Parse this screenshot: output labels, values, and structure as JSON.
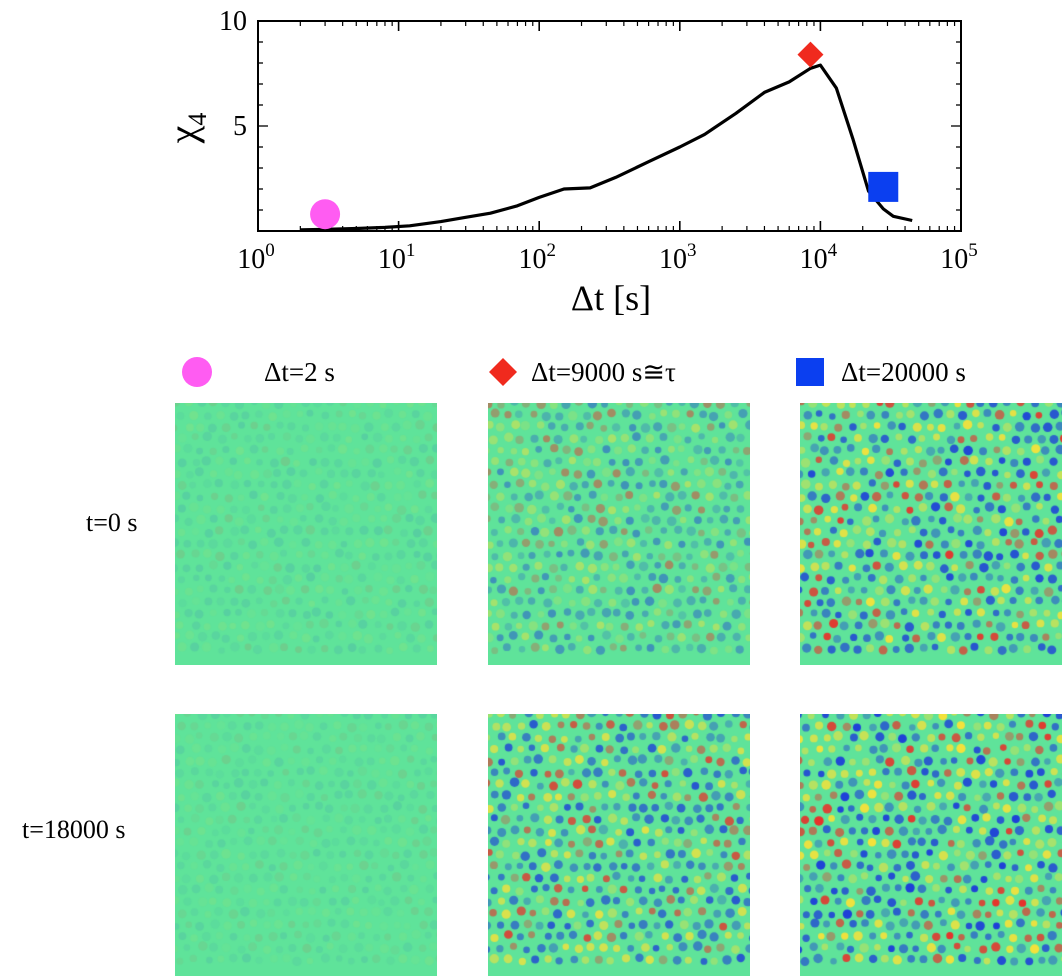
{
  "chart_data": {
    "type": "line",
    "title": "",
    "xlabel": "Δt [s]",
    "ylabel": "χ4",
    "xscale": "log",
    "xlim": [
      1,
      100000
    ],
    "ylim": [
      0,
      10
    ],
    "x_ticks": [
      {
        "value": 1,
        "base": "10",
        "exp": "0"
      },
      {
        "value": 10,
        "base": "10",
        "exp": "1"
      },
      {
        "value": 100,
        "base": "10",
        "exp": "2"
      },
      {
        "value": 1000,
        "base": "10",
        "exp": "3"
      },
      {
        "value": 10000,
        "base": "10",
        "exp": "4"
      },
      {
        "value": 100000,
        "base": "10",
        "exp": "5"
      }
    ],
    "y_ticks": [
      {
        "value": 5,
        "label": "5"
      },
      {
        "value": 10,
        "label": "10"
      }
    ],
    "grid": false,
    "series": [
      {
        "color": "#000000",
        "x": [
          2,
          3,
          5,
          8,
          12,
          20,
          30,
          45,
          70,
          100,
          150,
          230,
          350,
          600,
          1000,
          1500,
          2500,
          4000,
          6000,
          8500,
          10000,
          13000,
          17000,
          22000,
          28000,
          33000,
          45000
        ],
        "y": [
          0.05,
          0.08,
          0.12,
          0.17,
          0.25,
          0.45,
          0.65,
          0.85,
          1.2,
          1.6,
          2.0,
          2.05,
          2.55,
          3.3,
          4.0,
          4.6,
          5.6,
          6.6,
          7.1,
          7.75,
          7.9,
          6.8,
          4.4,
          1.9,
          1.05,
          0.7,
          0.5
        ]
      }
    ],
    "markers": [
      {
        "shape": "circle",
        "color": "#ff5cf2",
        "x": 3,
        "y": 0.8
      },
      {
        "shape": "diamond",
        "color": "#f02a1e",
        "x": 8500,
        "y": 8.4
      },
      {
        "shape": "square",
        "color": "#0b3ff0",
        "x": 28000,
        "y": 2.1
      }
    ]
  },
  "legend": [
    {
      "icon": "magenta-circle-icon",
      "color": "#ff5cf2",
      "label": "Δt=2 s"
    },
    {
      "icon": "red-diamond-icon",
      "color": "#f02a1e",
      "label": "Δt=9000 s≅τ"
    },
    {
      "icon": "blue-square-icon",
      "color": "#0b3ff0",
      "label": "Δt=20000 s"
    }
  ],
  "rows": [
    {
      "label": "t=0 s"
    },
    {
      "label": "t=18000 s"
    }
  ],
  "panels": {
    "background": "#5fe39a",
    "spot_colors": [
      "#1e3fd8",
      "#e8302a",
      "#f5e13a"
    ],
    "intensity": [
      [
        0.12,
        0.5,
        0.95
      ],
      [
        0.1,
        0.85,
        1.0
      ]
    ]
  }
}
